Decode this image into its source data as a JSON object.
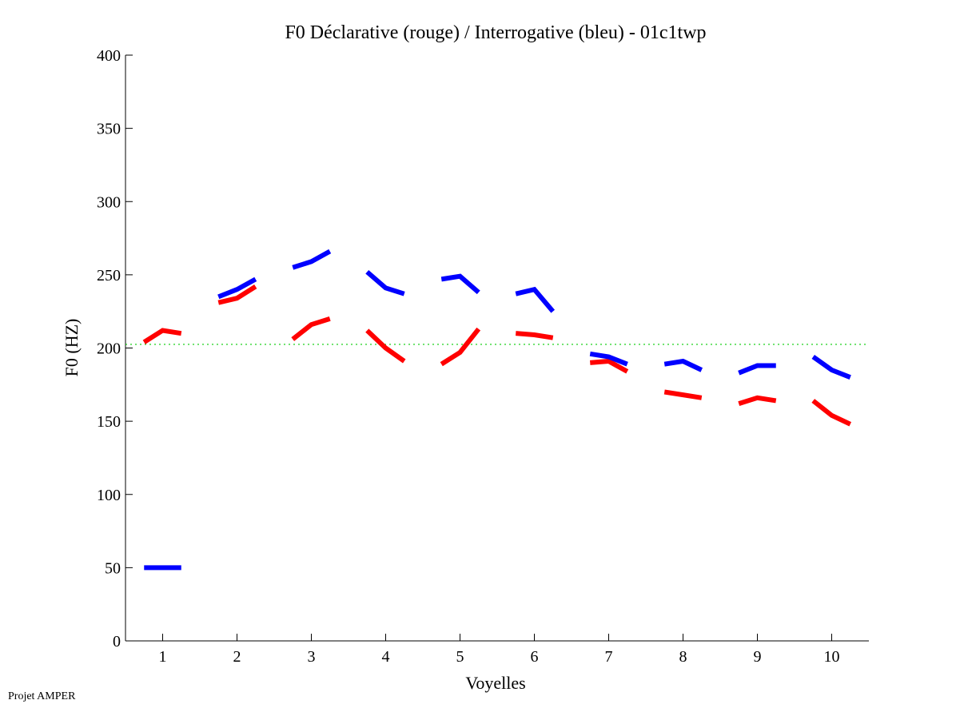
{
  "footer": "Projet AMPER",
  "chart_data": {
    "type": "line",
    "title": "F0 Déclarative (rouge) / Interrogative (bleu) - 01c1twp",
    "xlabel": "Voyelles",
    "ylabel": "F0 (HZ)",
    "xlim": [
      0.5,
      10.5
    ],
    "ylim": [
      0,
      400
    ],
    "xticks": [
      1,
      2,
      3,
      4,
      5,
      6,
      7,
      8,
      9,
      10
    ],
    "yticks": [
      0,
      50,
      100,
      150,
      200,
      250,
      300,
      350,
      400
    ],
    "grid": false,
    "point_offsets": [
      -0.25,
      0,
      0.25
    ],
    "reference_line": {
      "y": 202.5,
      "color": "#00cc00",
      "style": "dotted"
    },
    "series": [
      {
        "color": "#ff0000",
        "segments": [
          [
            204,
            212,
            210
          ],
          [
            231,
            234,
            242
          ],
          [
            206,
            216,
            220
          ],
          [
            212,
            200,
            191
          ],
          [
            189,
            197,
            213
          ],
          [
            210,
            209,
            207
          ],
          [
            190,
            191,
            184
          ],
          [
            170,
            168,
            166
          ],
          [
            162,
            166,
            164
          ],
          [
            164,
            154,
            148
          ]
        ]
      },
      {
        "color": "#0000ff",
        "segments": [
          [
            50,
            50,
            50
          ],
          [
            235,
            240,
            247
          ],
          [
            255,
            259,
            266
          ],
          [
            252,
            241,
            237
          ],
          [
            247,
            249,
            238
          ],
          [
            237,
            240,
            225
          ],
          [
            196,
            194,
            189
          ],
          [
            189,
            191,
            185
          ],
          [
            183,
            188,
            188
          ],
          [
            194,
            185,
            180
          ]
        ]
      }
    ]
  }
}
